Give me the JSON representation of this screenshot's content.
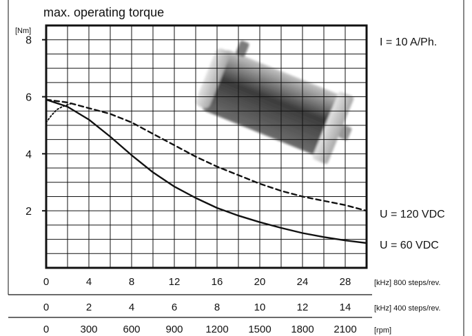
{
  "chart_data": {
    "type": "line",
    "title": "max. operating torque",
    "ylabel": "[Nm]",
    "ylim": [
      0,
      8.5
    ],
    "yticks": [
      2,
      4,
      6,
      8
    ],
    "xlim": [
      0,
      30
    ],
    "grid": true,
    "x_axes": [
      {
        "unit_label": "[kHz] 800 steps/rev.",
        "ticks": [
          "0",
          "4",
          "8",
          "12",
          "16",
          "20",
          "24",
          "28"
        ]
      },
      {
        "unit_label": "[kHz] 400 steps/rev.",
        "ticks": [
          "0",
          "2",
          "4",
          "6",
          "8",
          "10",
          "12",
          "14"
        ]
      },
      {
        "unit_label": "[rpm]",
        "ticks": [
          "0",
          "300",
          "600",
          "900",
          "1200",
          "1500",
          "1800",
          "2100"
        ]
      }
    ],
    "current_label": "I = 10 A/Ph.",
    "series": [
      {
        "name": "U = 120 VDC",
        "style": "dashed",
        "x": [
          0,
          2,
          4,
          6,
          8,
          10,
          12,
          14,
          16,
          18,
          20,
          22,
          24,
          26,
          28,
          30
        ],
        "y": [
          5.9,
          5.8,
          5.6,
          5.4,
          5.1,
          4.7,
          4.3,
          3.9,
          3.55,
          3.25,
          2.95,
          2.7,
          2.5,
          2.35,
          2.2,
          2.0
        ]
      },
      {
        "name": "U = 60 VDC",
        "style": "solid",
        "x": [
          0,
          2,
          4,
          6,
          8,
          10,
          12,
          14,
          16,
          18,
          20,
          22,
          24,
          26,
          28,
          30
        ],
        "y": [
          5.9,
          5.65,
          5.2,
          4.6,
          3.95,
          3.35,
          2.85,
          2.45,
          2.1,
          1.83,
          1.6,
          1.4,
          1.22,
          1.08,
          0.96,
          0.87
        ]
      },
      {
        "name": "",
        "style": "dotted",
        "x": [
          0,
          0.5,
          1,
          1.5,
          2,
          2.5
        ],
        "y": [
          5.1,
          5.35,
          5.55,
          5.65,
          5.72,
          5.78
        ]
      }
    ]
  },
  "colors": {
    "line": "#111111",
    "grid": "#111111",
    "background": "#ffffff"
  },
  "photo": {
    "icon": "stepper-motor-photo"
  }
}
